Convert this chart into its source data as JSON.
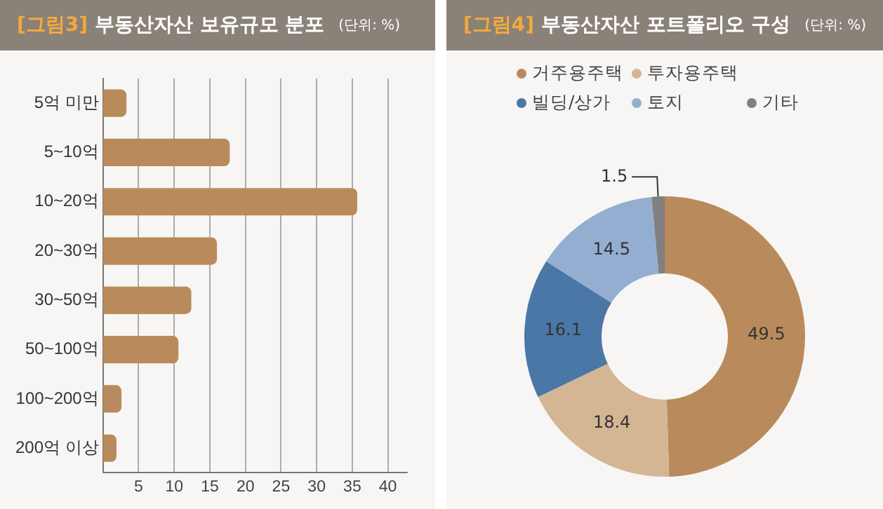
{
  "chart_data": [
    {
      "type": "bar",
      "orientation": "horizontal",
      "title": "[그림3] 부동산자산 보유규모 분포",
      "subtitle": "(단위: %)",
      "categories": [
        "5억 미만",
        "5~10억",
        "10~20억",
        "20~30억",
        "30~50억",
        "50~100억",
        "100~200억",
        "200억 이상"
      ],
      "values": [
        3.3,
        17.8,
        35.7,
        16.0,
        12.4,
        10.6,
        2.6,
        1.9
      ],
      "color": "#b98b5c",
      "xlim": [
        0,
        42.7
      ],
      "xticks": [
        5,
        10,
        15,
        20,
        25,
        30,
        35,
        40
      ],
      "grid": "x",
      "legend": false
    },
    {
      "type": "donut",
      "title": "[그림4] 부동산자산 포트폴리오 구성",
      "subtitle": "(단위: %)",
      "categories": [
        "거주용주택",
        "투자용주택",
        "빌딩/상가",
        "토지",
        "기타"
      ],
      "values": [
        49.5,
        18.4,
        16.1,
        14.5,
        1.5
      ],
      "colors": [
        "#b98b5c",
        "#d4b594",
        "#4a77a5",
        "#93aed0",
        "#808080"
      ],
      "data_labels": true,
      "legend": "top"
    }
  ]
}
